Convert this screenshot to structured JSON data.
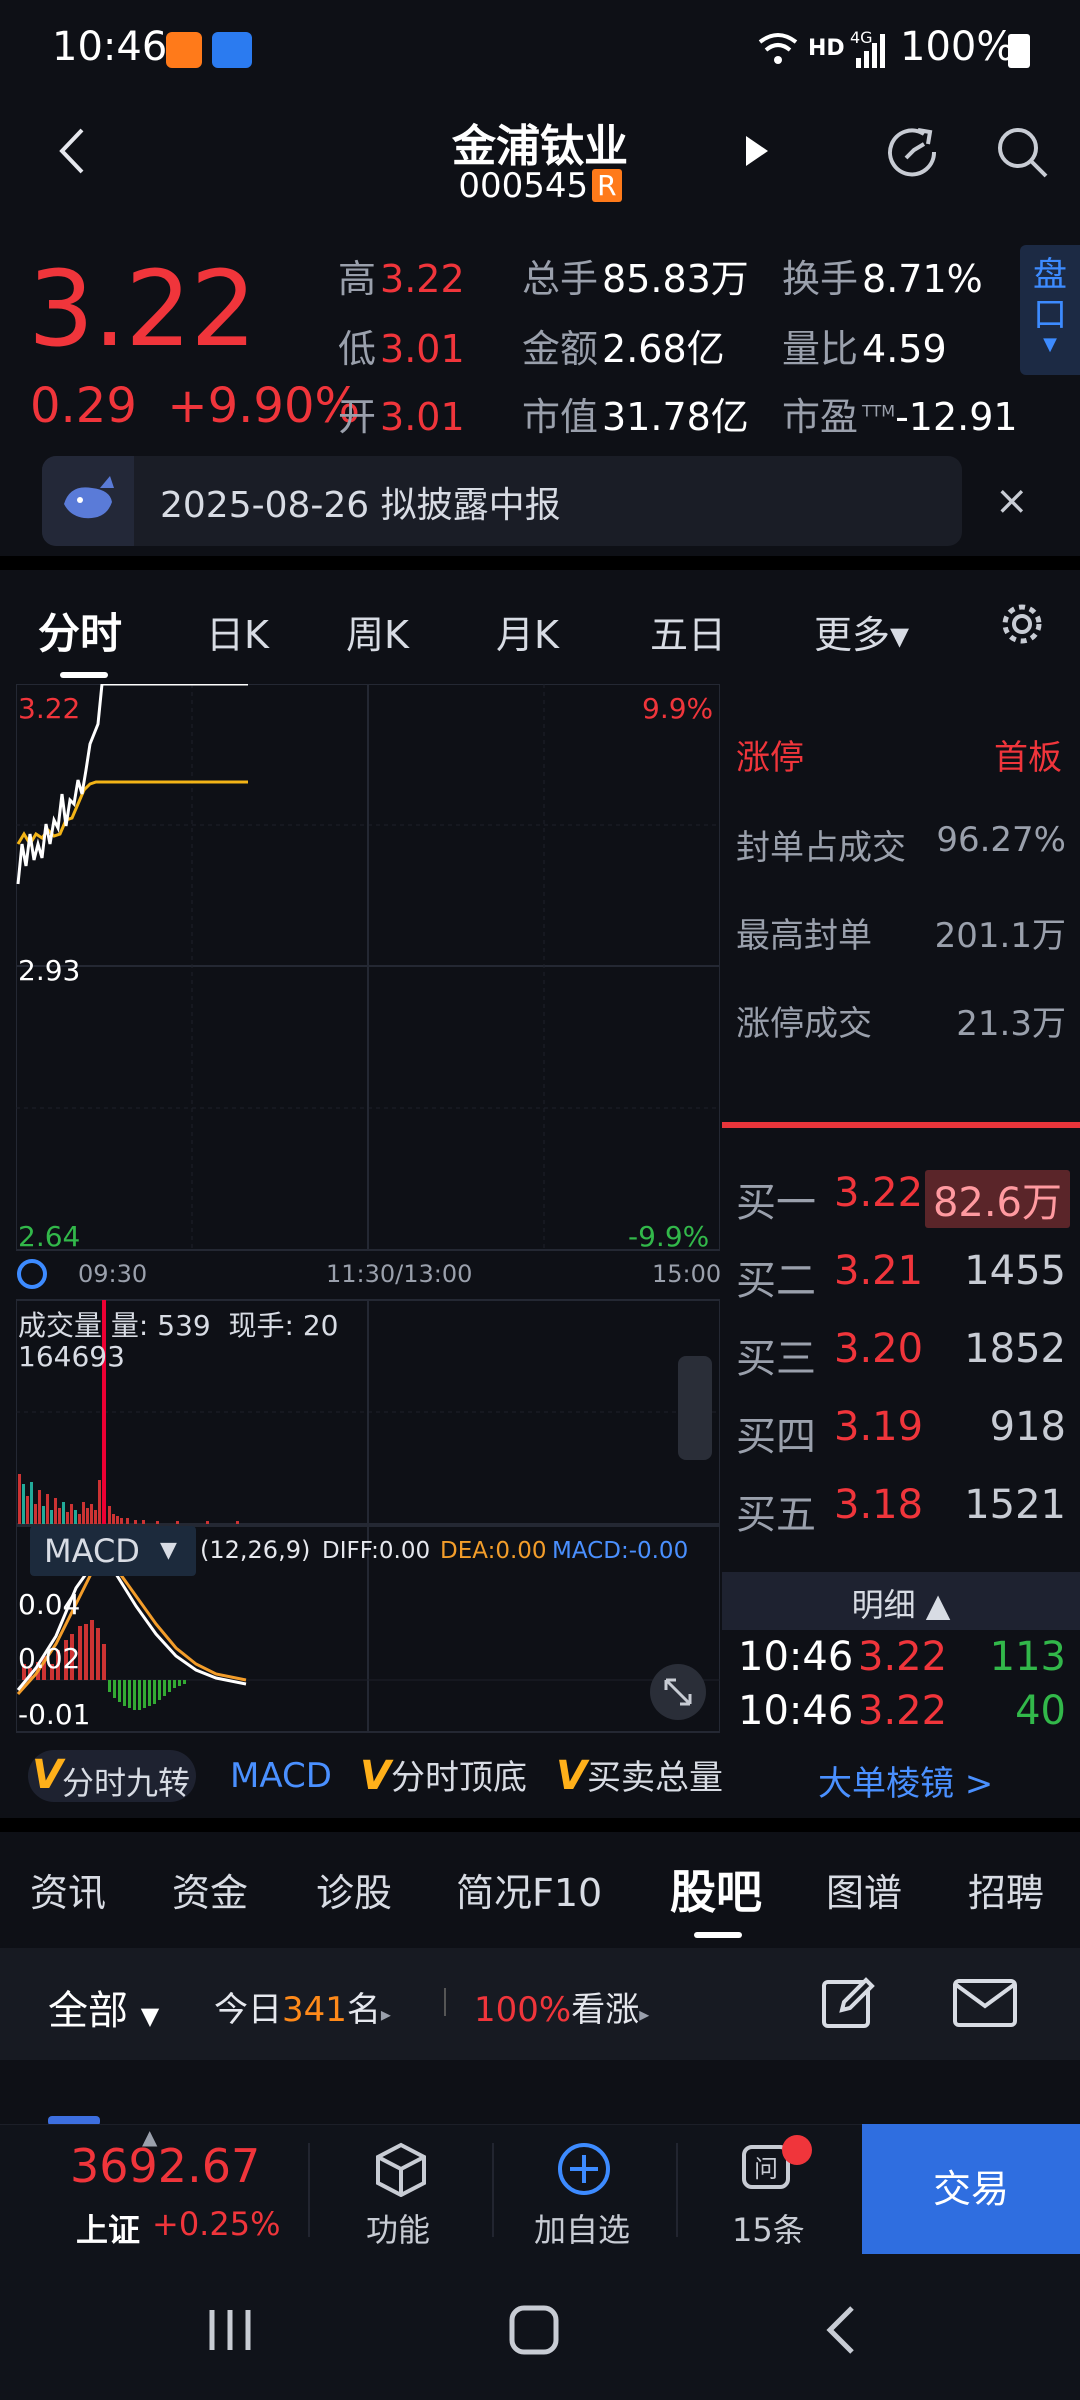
{
  "status_bar": {
    "time": "10:46",
    "network": "HD",
    "signal": "4G",
    "battery": "100%"
  },
  "header": {
    "name": "金浦钛业",
    "code": "000545",
    "badge": "R"
  },
  "quote": {
    "price": "3.22",
    "change": "0.29",
    "change_pct": "+9.90%",
    "high_label": "高",
    "high": "3.22",
    "low_label": "低",
    "low": "3.01",
    "open_label": "开",
    "open": "3.01",
    "volume_label": "总手",
    "volume": "85.83万",
    "amount_label": "金额",
    "amount": "2.68亿",
    "mktcap_label": "市值",
    "mktcap": "31.78亿",
    "turnover_label": "换手",
    "turnover": "8.71%",
    "vol_ratio_label": "量比",
    "vol_ratio": "4.59",
    "pe_label": "市盈",
    "pe_sup": "TTM",
    "pe": "-12.91",
    "pan_label_1": "盘",
    "pan_label_2": "口"
  },
  "notice": {
    "text": "2025-08-26 拟披露中报",
    "close": "×"
  },
  "chart_tabs": [
    "分时",
    "日K",
    "周K",
    "月K",
    "五日",
    "更多▾"
  ],
  "chart": {
    "top_price": "3.22",
    "top_pct": "9.9%",
    "mid_price": "2.93",
    "bottom_price": "2.64",
    "bottom_pct": "-9.9%",
    "time_start": "09:30",
    "time_mid": "11:30/13:00",
    "time_end": "15:00",
    "volume_title": "成交量",
    "volume_info": "量: 539",
    "volume_now": "现手: 20",
    "volume_max": "164693",
    "macd_label": "MACD",
    "macd_params": "(12,26,9)",
    "diff": "DIFF:0.00",
    "dea": "DEA:0.00",
    "macd_val": "MACD:-0.00",
    "macd_y1": "0.04",
    "macd_y2": "0.02",
    "macd_y3": "-0.01"
  },
  "limit_info": {
    "status": "涨停",
    "board": "首板",
    "rows": [
      {
        "label": "封单占成交",
        "value": "96.27%"
      },
      {
        "label": "最高封单",
        "value": "201.1万"
      },
      {
        "label": "涨停成交",
        "value": "21.3万"
      }
    ]
  },
  "order_book": [
    {
      "label": "买一",
      "price": "3.22",
      "qty": "82.6万"
    },
    {
      "label": "买二",
      "price": "3.21",
      "qty": "1455"
    },
    {
      "label": "买三",
      "price": "3.20",
      "qty": "1852"
    },
    {
      "label": "买四",
      "price": "3.19",
      "qty": "918"
    },
    {
      "label": "买五",
      "price": "3.18",
      "qty": "1521"
    }
  ],
  "details": {
    "title": "明细 ▲",
    "rows": [
      {
        "time": "10:46",
        "price": "3.22",
        "qty": "113"
      },
      {
        "time": "10:46",
        "price": "3.22",
        "qty": "40"
      }
    ]
  },
  "indicators": {
    "v": "V",
    "i1": "分时九转",
    "i2": "MACD",
    "i3": "分时顶底",
    "i4": "买卖总量",
    "link": "大单棱镜 >"
  },
  "bottom_tabs": [
    "资讯",
    "资金",
    "诊股",
    "简况F10",
    "股吧",
    "图谱",
    "招聘"
  ],
  "filter": {
    "all": "全部",
    "today_prefix": "今日",
    "today_count": "341",
    "today_suffix": "名",
    "bull_pct": "100%",
    "bull_label": "看涨"
  },
  "bottom_nav": {
    "index_value": "3692.67",
    "index_name": "上证",
    "index_pct": "+0.25%",
    "func": "功能",
    "add": "加自选",
    "msgs": "15条",
    "trade": "交易"
  }
}
